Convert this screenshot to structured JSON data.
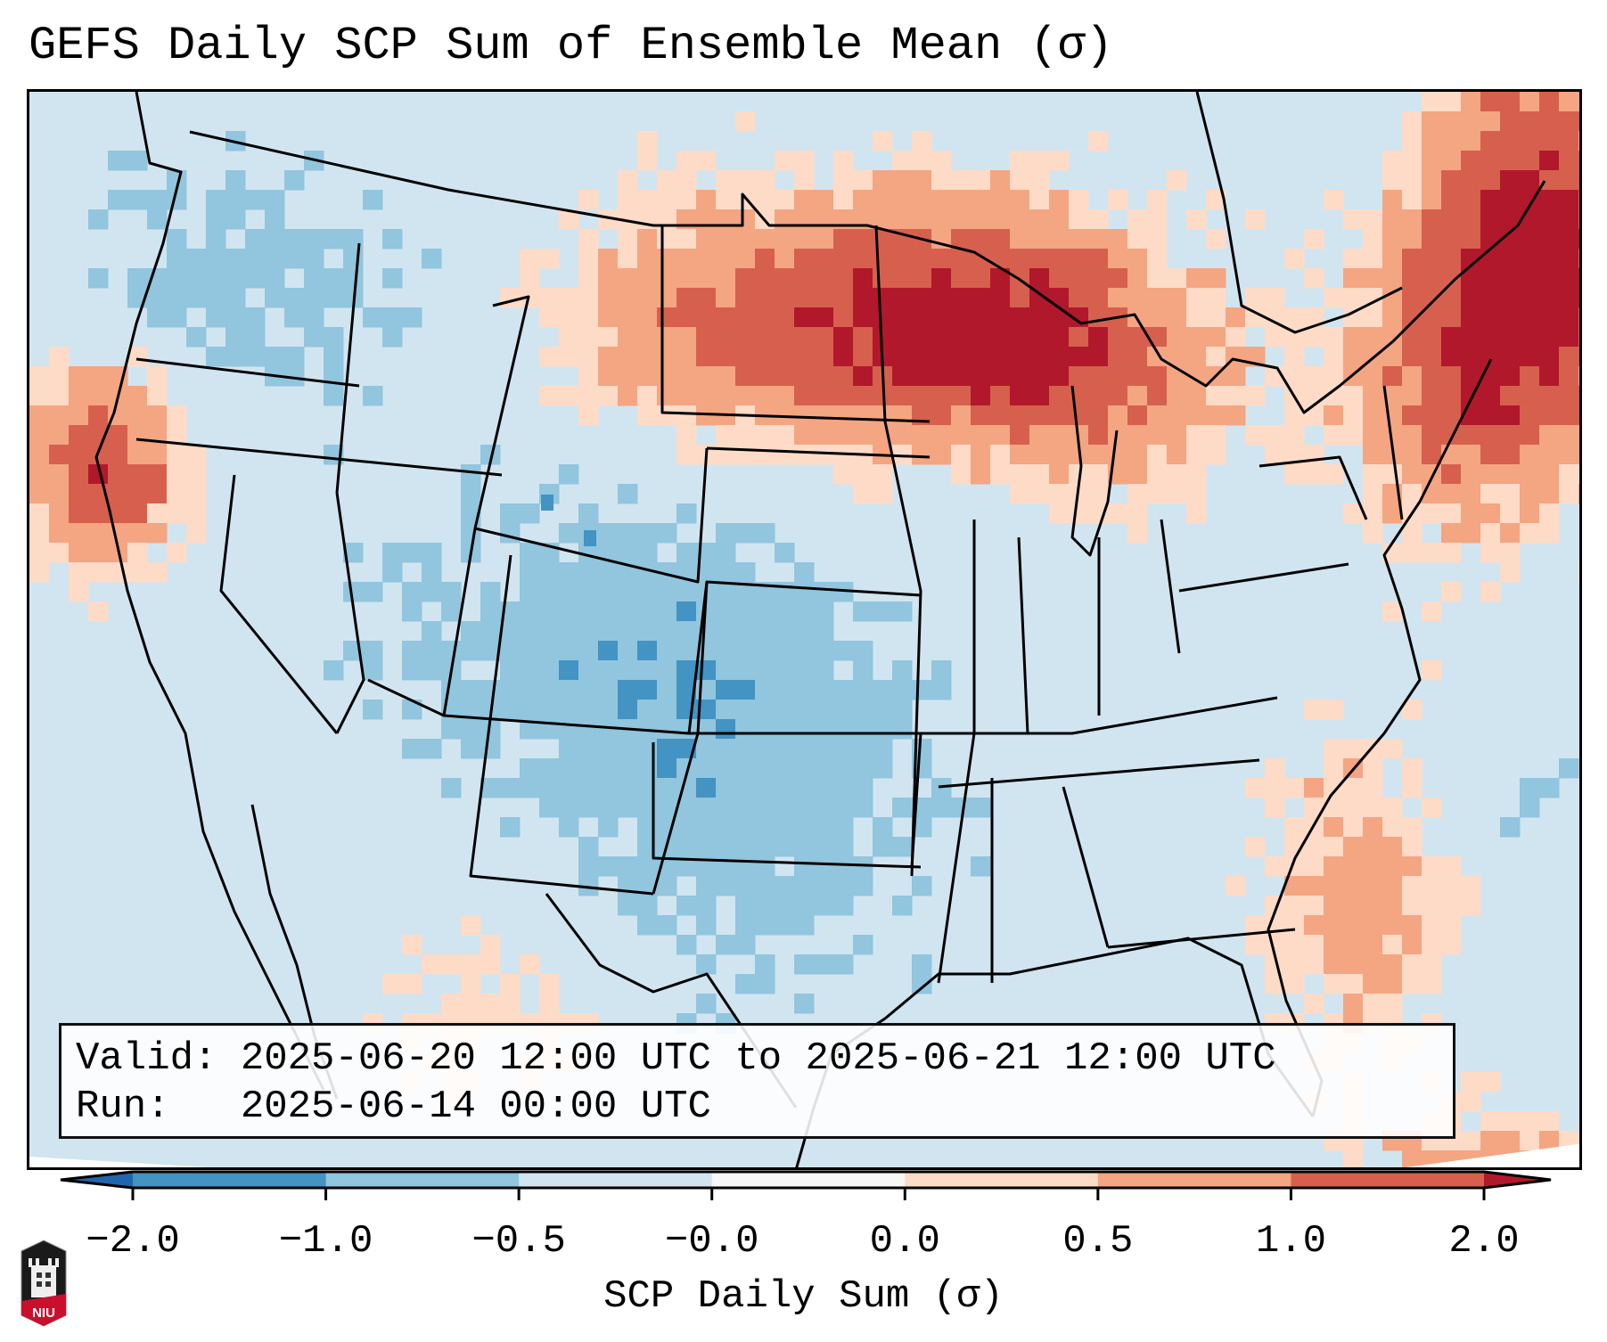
{
  "title": "GEFS Daily SCP Sum of Ensemble Mean (σ)",
  "info_box": {
    "valid_line": "Valid: 2025-06-20 12:00 UTC to 2025-06-21 12:00 UTC",
    "run_line": "Run:   2025-06-14 00:00 UTC"
  },
  "colorbar": {
    "label": "SCP Daily Sum (σ)",
    "ticks": [
      "−2.0",
      "−1.0",
      "−0.5",
      "−0.0",
      "0.0",
      "0.5",
      "1.0",
      "2.0"
    ],
    "bounds": [
      -2.0,
      -1.0,
      -0.5,
      -0.0,
      0.0,
      0.5,
      1.0,
      2.0
    ],
    "under_color": "#2166ac",
    "over_color": "#b2182b",
    "colors": [
      "#4393c3",
      "#92c5de",
      "#d1e5f0",
      "#f7f7f7",
      "#fddbc7",
      "#f4a582",
      "#d6604d"
    ],
    "extend": "both"
  },
  "logo": {
    "text": "NIU",
    "icon": "niu-tower-logo"
  },
  "map": {
    "projection": "Lambert Conformal (CONUS)",
    "background_color": "#d1e5f0",
    "anomaly_regions": [
      {
        "name": "Northern Plains / Upper Midwest",
        "level": "1.0 to 2.0"
      },
      {
        "name": "Upper Great Lakes",
        "level": "above 2.0"
      },
      {
        "name": "Northeast / Maine",
        "level": "above 2.0"
      },
      {
        "name": "Carolina coast offshore",
        "level": "0.5 to 1.0"
      },
      {
        "name": "Northern California coast",
        "level": "above 2.0"
      },
      {
        "name": "Colorado / Kansas / Oklahoma / Texas",
        "level": "-1.0 to -0.5"
      },
      {
        "name": "Colorado isolated cells",
        "level": "-2.0 to -1.0"
      }
    ]
  }
}
